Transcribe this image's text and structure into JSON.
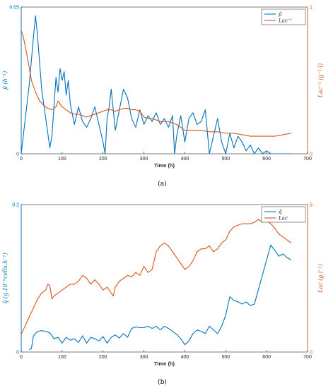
{
  "colors": {
    "blue": "#0072BD",
    "orange": "#D95319",
    "axis": "#262626"
  },
  "chart_data": [
    {
      "type": "line",
      "panel_label": "(a)",
      "xlabel": "Time (h)",
      "ylabel_left": "μ̂ (h⁻¹)",
      "ylabel_right": "Lac⁻¹ (g⁻¹·l)",
      "xlim": [
        0,
        700
      ],
      "ylim_left": [
        0,
        0.05
      ],
      "ylim_right": [
        0,
        1
      ],
      "x_ticks": [
        "0",
        "100",
        "200",
        "300",
        "400",
        "500",
        "600",
        "700"
      ],
      "y_ticks_left": [
        "0",
        "0.05"
      ],
      "y_ticks_right": [
        "0",
        "1"
      ],
      "legend_position": "top-right",
      "series": [
        {
          "name": "μ̂",
          "axis": "left",
          "x": [
            0,
            10,
            20,
            30,
            35,
            40,
            50,
            60,
            70,
            75,
            80,
            85,
            90,
            95,
            100,
            105,
            110,
            115,
            120,
            130,
            140,
            150,
            160,
            170,
            180,
            190,
            200,
            205,
            210,
            215,
            220,
            230,
            240,
            250,
            260,
            270,
            280,
            290,
            300,
            310,
            320,
            330,
            340,
            350,
            360,
            370,
            375,
            380,
            390,
            400,
            410,
            420,
            430,
            440,
            450,
            460,
            470,
            480,
            490,
            500,
            510,
            520,
            530,
            540,
            550,
            560,
            570,
            580,
            590,
            600,
            610,
            620,
            630,
            640,
            650,
            660
          ],
          "y": [
            0,
            0.012,
            0.024,
            0.04,
            0.047,
            0.04,
            0.022,
            0.012,
            0.002,
            0.006,
            0.016,
            0.026,
            0.021,
            0.029,
            0.025,
            0.028,
            0.02,
            0.025,
            0.017,
            0.01,
            0.016,
            0.011,
            0.009,
            0.012,
            0.016,
            0.01,
            0.004,
            0.0,
            0.012,
            0.016,
            0.022,
            0.008,
            0.015,
            0.022,
            0.019,
            0.012,
            0.009,
            0.015,
            0.01,
            0.013,
            0.011,
            0.014,
            0.01,
            0.012,
            0.009,
            0.013,
            0.0,
            0.006,
            0.013,
            0.004,
            0.012,
            0.014,
            0.01,
            0.011,
            0.015,
            0.0,
            0.006,
            0.012,
            0.004,
            0.0,
            0.007,
            0.002,
            0.006,
            0.004,
            0.001,
            0.003,
            0.0,
            0.002,
            0.0,
            0.001,
            0.0,
            0.0,
            0.0,
            0.0,
            0.0,
            0.0
          ]
        },
        {
          "name": "Lac⁻¹",
          "axis": "right",
          "x": [
            0,
            5,
            15,
            25,
            35,
            45,
            55,
            65,
            75,
            85,
            90,
            95,
            100,
            110,
            120,
            130,
            140,
            150,
            160,
            170,
            180,
            190,
            200,
            210,
            220,
            230,
            240,
            250,
            260,
            270,
            280,
            290,
            300,
            310,
            320,
            330,
            340,
            350,
            360,
            370,
            380,
            390,
            400,
            420,
            440,
            460,
            480,
            500,
            520,
            540,
            560,
            580,
            600,
            620,
            640,
            660
          ],
          "y": [
            0.84,
            0.8,
            0.66,
            0.5,
            0.42,
            0.36,
            0.33,
            0.31,
            0.3,
            0.32,
            0.36,
            0.34,
            0.32,
            0.3,
            0.28,
            0.27,
            0.27,
            0.26,
            0.25,
            0.26,
            0.27,
            0.28,
            0.29,
            0.3,
            0.3,
            0.29,
            0.3,
            0.31,
            0.31,
            0.3,
            0.3,
            0.29,
            0.25,
            0.24,
            0.24,
            0.23,
            0.22,
            0.22,
            0.22,
            0.21,
            0.2,
            0.18,
            0.16,
            0.16,
            0.16,
            0.15,
            0.15,
            0.14,
            0.14,
            0.13,
            0.12,
            0.12,
            0.12,
            0.12,
            0.13,
            0.14
          ]
        }
      ]
    },
    {
      "type": "line",
      "panel_label": "(b)",
      "xlabel": "Time (h)",
      "ylabel_left": "q̂ (g.10⁻⁹cells.h⁻¹)",
      "ylabel_right": "Lac (g.l⁻¹)",
      "xlim": [
        0,
        700
      ],
      "ylim_left": [
        0,
        0.2
      ],
      "ylim_right": [
        0,
        5
      ],
      "x_ticks": [
        "0",
        "100",
        "200",
        "300",
        "400",
        "500",
        "600",
        "700"
      ],
      "y_ticks_left": [
        "0",
        "0.2"
      ],
      "y_ticks_right": [
        "0",
        "5"
      ],
      "legend_position": "top-right",
      "series": [
        {
          "name": "q̂",
          "axis": "left",
          "x": [
            20,
            25,
            30,
            40,
            50,
            60,
            70,
            80,
            90,
            100,
            110,
            120,
            130,
            140,
            150,
            160,
            170,
            180,
            190,
            200,
            210,
            220,
            230,
            240,
            250,
            260,
            270,
            280,
            290,
            300,
            310,
            320,
            330,
            340,
            350,
            360,
            370,
            380,
            390,
            400,
            410,
            420,
            430,
            440,
            450,
            460,
            470,
            480,
            490,
            500,
            510,
            520,
            530,
            540,
            550,
            560,
            570,
            580,
            590,
            600,
            610,
            620,
            630,
            640,
            650,
            660
          ],
          "y": [
            0.003,
            0.005,
            0.022,
            0.028,
            0.029,
            0.028,
            0.026,
            0.018,
            0.02,
            0.012,
            0.02,
            0.016,
            0.018,
            0.013,
            0.022,
            0.012,
            0.02,
            0.018,
            0.015,
            0.021,
            0.012,
            0.02,
            0.023,
            0.019,
            0.025,
            0.02,
            0.032,
            0.034,
            0.033,
            0.033,
            0.035,
            0.032,
            0.035,
            0.03,
            0.035,
            0.032,
            0.028,
            0.024,
            0.018,
            0.01,
            0.015,
            0.025,
            0.03,
            0.028,
            0.025,
            0.035,
            0.03,
            0.025,
            0.035,
            0.05,
            0.075,
            0.07,
            0.068,
            0.065,
            0.068,
            0.063,
            0.065,
            0.085,
            0.105,
            0.125,
            0.145,
            0.138,
            0.13,
            0.133,
            0.128,
            0.125
          ]
        },
        {
          "name": "Lac",
          "axis": "right",
          "x": [
            0,
            10,
            20,
            30,
            40,
            50,
            60,
            65,
            70,
            75,
            80,
            90,
            100,
            110,
            120,
            130,
            140,
            150,
            160,
            170,
            180,
            190,
            200,
            210,
            220,
            225,
            230,
            240,
            250,
            260,
            270,
            280,
            290,
            300,
            310,
            320,
            330,
            340,
            350,
            360,
            370,
            380,
            390,
            400,
            410,
            420,
            430,
            440,
            450,
            460,
            470,
            480,
            490,
            500,
            510,
            520,
            530,
            540,
            550,
            560,
            570,
            580,
            590,
            600,
            610,
            620,
            630,
            640,
            650,
            660
          ],
          "y": [
            0.6,
            0.9,
            1.2,
            1.5,
            1.8,
            2.0,
            2.1,
            2.3,
            2.25,
            1.8,
            1.9,
            2.0,
            2.1,
            2.2,
            2.3,
            2.3,
            2.4,
            2.6,
            2.5,
            2.3,
            2.45,
            2.3,
            2.1,
            2.2,
            2.0,
            1.9,
            2.2,
            2.4,
            2.5,
            2.6,
            2.55,
            2.7,
            2.6,
            2.9,
            2.7,
            2.8,
            3.4,
            3.6,
            3.7,
            3.6,
            3.4,
            3.2,
            3.0,
            2.8,
            2.9,
            3.1,
            3.4,
            3.5,
            3.5,
            3.6,
            3.4,
            3.5,
            3.7,
            3.8,
            4.1,
            4.25,
            4.3,
            4.35,
            4.35,
            4.35,
            4.4,
            4.5,
            4.4,
            4.45,
            4.35,
            4.2,
            4.0,
            3.9,
            3.8,
            3.7
          ]
        }
      ]
    }
  ]
}
